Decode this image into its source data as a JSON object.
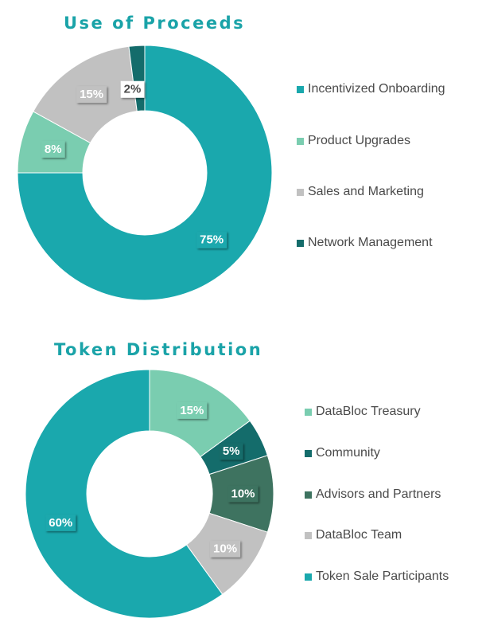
{
  "chart_data": [
    {
      "type": "pie",
      "title": "Use of Proceeds",
      "categories": [
        "Incentivized Onboarding",
        "Product Upgrades",
        "Sales and Marketing",
        "Network Management"
      ],
      "values": [
        75,
        8,
        15,
        2
      ],
      "labels": [
        "75%",
        "8%",
        "15%",
        "2%"
      ],
      "colors": [
        "#1aa8ad",
        "#7acdb0",
        "#c1c1c1",
        "#146c6b"
      ],
      "legend_position": "right"
    },
    {
      "type": "pie",
      "title": "Token Distribution",
      "categories": [
        "DataBloc Treasury",
        "Community",
        "Advisors and Partners",
        "DataBloc Team",
        "Token Sale Participants"
      ],
      "values": [
        15,
        5,
        10,
        10,
        60
      ],
      "labels": [
        "15%",
        "5%",
        "10%",
        "10%",
        "60%"
      ],
      "colors": [
        "#7acdb0",
        "#146c6b",
        "#3e7360",
        "#c1c1c1",
        "#1aa8ad"
      ],
      "legend_position": "right"
    }
  ]
}
